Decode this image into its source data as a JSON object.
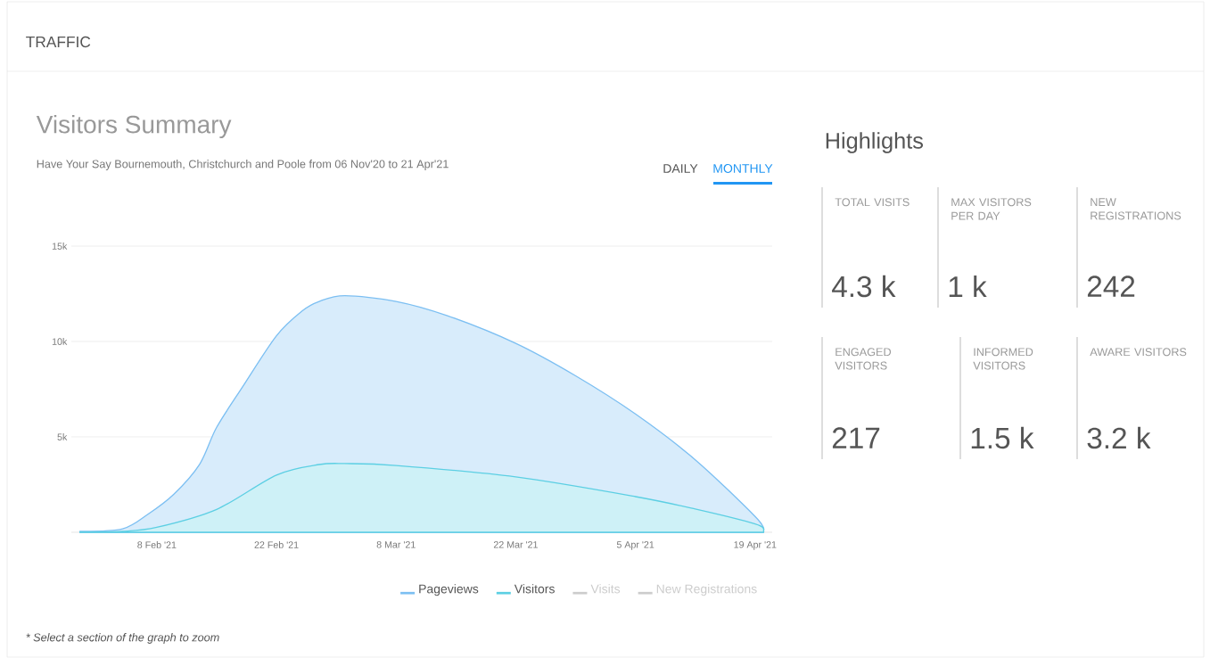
{
  "chart_data": [
    {
      "type": "area",
      "title": "Visitors Summary",
      "subtitle": "Have Your Say Bournemouth, Christchurch and Poole from 06 Nov'20 to 21 Apr'21",
      "annotations": [
        "TRAFFIC",
        "DAILY",
        "MONTHLY",
        "* Select a section of the graph to zoom"
      ],
      "xlim": [
        "2021-01-29",
        "2021-04-21"
      ],
      "xticks": [
        {
          "value": "2021-02-08",
          "label": "8 Feb '21"
        },
        {
          "value": "2021-02-22",
          "label": "22 Feb '21"
        },
        {
          "value": "2021-03-08",
          "label": "8 Mar '21"
        },
        {
          "value": "2021-03-22",
          "label": "22 Mar '21"
        },
        {
          "value": "2021-04-05",
          "label": "5 Apr '21"
        },
        {
          "value": "2021-04-19",
          "label": "19 Apr '21"
        }
      ],
      "ylim": [
        0,
        15000
      ],
      "yticks": [
        {
          "value": 5000,
          "label": "5k"
        },
        {
          "value": 10000,
          "label": "10k"
        },
        {
          "value": 15000,
          "label": "15k"
        }
      ],
      "grid": "y",
      "legend": "bottom",
      "series": [
        {
          "name": "Pageviews",
          "color": "#7cbff2",
          "x": [
            "2021-01-30",
            "2021-02-04",
            "2021-02-07",
            "2021-02-10",
            "2021-02-13",
            "2021-02-15",
            "2021-02-18",
            "2021-02-22",
            "2021-02-25",
            "2021-02-27",
            "2021-03-02",
            "2021-03-08",
            "2021-03-14",
            "2021-03-22",
            "2021-03-29",
            "2021-04-05",
            "2021-04-12",
            "2021-04-19",
            "2021-04-20"
          ],
          "values": [
            50,
            180,
            960,
            2000,
            3560,
            5500,
            7600,
            10300,
            11600,
            12100,
            12400,
            12100,
            11350,
            9900,
            8200,
            6200,
            3800,
            830,
            130
          ]
        },
        {
          "name": "Visitors",
          "color": "#5ccfe3",
          "x": [
            "2021-01-30",
            "2021-02-04",
            "2021-02-08",
            "2021-02-15",
            "2021-02-22",
            "2021-02-27",
            "2021-03-02",
            "2021-03-08",
            "2021-03-22",
            "2021-04-05",
            "2021-04-12",
            "2021-04-19",
            "2021-04-20"
          ],
          "values": [
            20,
            50,
            260,
            1200,
            3000,
            3550,
            3600,
            3500,
            2900,
            1870,
            1220,
            440,
            130
          ]
        },
        {
          "name": "Visits",
          "color": "#cccccc"
        },
        {
          "name": "New Registrations",
          "color": "#cccccc"
        }
      ]
    },
    {
      "type": "other",
      "title": "Highlights",
      "annotations": [
        "TOTAL VISITS",
        "4.3 k",
        "MAX VISITORS PER DAY",
        "1 k",
        "NEW REGISTRATIONS",
        "242",
        "ENGAGED VISITORS",
        "217",
        "INFORMED VISITORS",
        "1.5 k",
        "AWARE VISITORS",
        "3.2 k"
      ]
    }
  ]
}
